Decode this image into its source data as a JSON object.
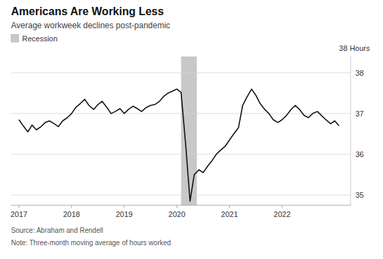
{
  "chart_data": {
    "type": "line",
    "title": "Americans Are Working Less",
    "subtitle": "Average workweek declines post-pandemic",
    "annotation": "38 Hours",
    "source": "Source: Abraham and Rendell",
    "note": "Note: Three-month moving average of hours worked",
    "legend": "top-left",
    "grid": true,
    "xlim": [
      2016.85,
      2023.3
    ],
    "ylim": [
      34.75,
      38.4
    ],
    "xticks": [
      2017,
      2018,
      2019,
      2020,
      2021,
      2022
    ],
    "yticks": [
      35,
      36,
      37,
      38
    ],
    "bands": [
      {
        "name": "Recession",
        "start": 2020.08,
        "end": 2020.38,
        "color": "#c8c8c8"
      }
    ],
    "x": [
      2017.0,
      2017.08,
      2017.17,
      2017.25,
      2017.33,
      2017.42,
      2017.5,
      2017.58,
      2017.67,
      2017.75,
      2017.83,
      2017.92,
      2018.0,
      2018.08,
      2018.17,
      2018.25,
      2018.33,
      2018.42,
      2018.5,
      2018.58,
      2018.67,
      2018.75,
      2018.83,
      2018.92,
      2019.0,
      2019.08,
      2019.17,
      2019.25,
      2019.33,
      2019.42,
      2019.5,
      2019.58,
      2019.67,
      2019.75,
      2019.83,
      2019.92,
      2020.0,
      2020.08,
      2020.17,
      2020.25,
      2020.33,
      2020.42,
      2020.5,
      2020.58,
      2020.67,
      2020.75,
      2020.83,
      2020.92,
      2021.0,
      2021.08,
      2021.17,
      2021.25,
      2021.33,
      2021.42,
      2021.5,
      2021.58,
      2021.67,
      2021.75,
      2021.83,
      2021.92,
      2022.0,
      2022.08,
      2022.17,
      2022.25,
      2022.33,
      2022.42,
      2022.5,
      2022.58,
      2022.67,
      2022.75,
      2022.83,
      2022.92,
      2023.0,
      2023.08
    ],
    "series": [
      {
        "color": "#111111",
        "values": [
          36.85,
          36.7,
          36.55,
          36.72,
          36.6,
          36.68,
          36.78,
          36.82,
          36.75,
          36.68,
          36.82,
          36.9,
          37.0,
          37.15,
          37.25,
          37.35,
          37.2,
          37.1,
          37.22,
          37.3,
          37.15,
          37.0,
          37.05,
          37.12,
          37.0,
          37.1,
          37.18,
          37.12,
          37.05,
          37.15,
          37.2,
          37.22,
          37.3,
          37.42,
          37.5,
          37.55,
          37.6,
          37.52,
          36.2,
          34.85,
          35.5,
          35.62,
          35.55,
          35.7,
          35.85,
          36.0,
          36.1,
          36.2,
          36.35,
          36.5,
          36.65,
          37.2,
          37.4,
          37.6,
          37.45,
          37.25,
          37.1,
          37.0,
          36.85,
          36.78,
          36.85,
          36.95,
          37.1,
          37.2,
          37.1,
          36.95,
          36.9,
          37.0,
          37.05,
          36.95,
          36.85,
          36.75,
          36.82,
          36.7
        ]
      }
    ]
  }
}
